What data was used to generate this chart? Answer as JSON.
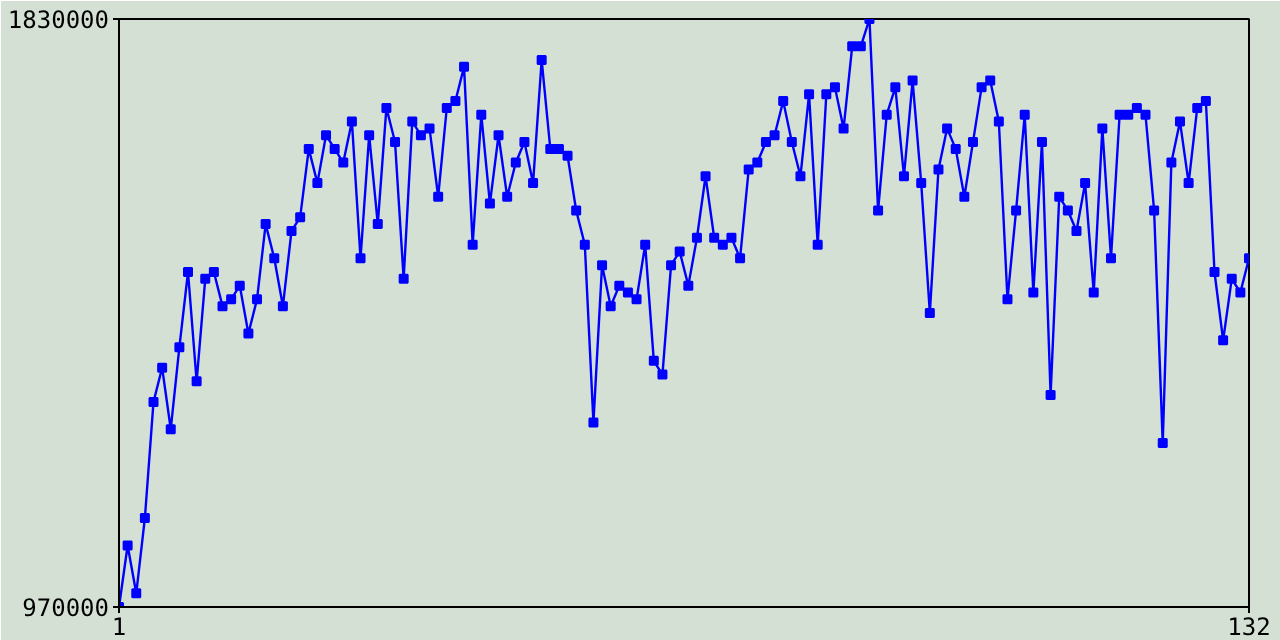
{
  "chart_data": {
    "type": "line",
    "x": [
      1,
      2,
      3,
      4,
      5,
      6,
      7,
      8,
      9,
      10,
      11,
      12,
      13,
      14,
      15,
      16,
      17,
      18,
      19,
      20,
      21,
      22,
      23,
      24,
      25,
      26,
      27,
      28,
      29,
      30,
      31,
      32,
      33,
      34,
      35,
      36,
      37,
      38,
      39,
      40,
      41,
      42,
      43,
      44,
      45,
      46,
      47,
      48,
      49,
      50,
      51,
      52,
      53,
      54,
      55,
      56,
      57,
      58,
      59,
      60,
      61,
      62,
      63,
      64,
      65,
      66,
      67,
      68,
      69,
      70,
      71,
      72,
      73,
      74,
      75,
      76,
      77,
      78,
      79,
      80,
      81,
      82,
      83,
      84,
      85,
      86,
      87,
      88,
      89,
      90,
      91,
      92,
      93,
      94,
      95,
      96,
      97,
      98,
      99,
      100,
      101,
      102,
      103,
      104,
      105,
      106,
      107,
      108,
      109,
      110,
      111,
      112,
      113,
      114,
      115,
      116,
      117,
      118,
      119,
      120,
      121,
      122,
      123,
      124,
      125,
      126,
      127,
      128,
      129,
      130,
      131,
      132
    ],
    "series": [
      {
        "color": "#0000ff",
        "values": [
          970000,
          1060000,
          990000,
          1100000,
          1270000,
          1320000,
          1230000,
          1350000,
          1460000,
          1300000,
          1450000,
          1460000,
          1410000,
          1420000,
          1440000,
          1370000,
          1420000,
          1530000,
          1480000,
          1410000,
          1520000,
          1540000,
          1640000,
          1590000,
          1660000,
          1640000,
          1620000,
          1680000,
          1480000,
          1660000,
          1530000,
          1700000,
          1650000,
          1450000,
          1680000,
          1660000,
          1670000,
          1570000,
          1700000,
          1710000,
          1760000,
          1500000,
          1690000,
          1560000,
          1660000,
          1570000,
          1620000,
          1650000,
          1590000,
          1770000,
          1640000,
          1640000,
          1630000,
          1550000,
          1500000,
          1240000,
          1470000,
          1410000,
          1440000,
          1430000,
          1420000,
          1500000,
          1330000,
          1310000,
          1470000,
          1490000,
          1440000,
          1510000,
          1600000,
          1510000,
          1500000,
          1510000,
          1480000,
          1610000,
          1620000,
          1650000,
          1660000,
          1710000,
          1650000,
          1600000,
          1720000,
          1500000,
          1720000,
          1730000,
          1670000,
          1790000,
          1790000,
          1830000,
          1550000,
          1690000,
          1730000,
          1600000,
          1740000,
          1590000,
          1400000,
          1610000,
          1670000,
          1640000,
          1570000,
          1650000,
          1730000,
          1740000,
          1680000,
          1420000,
          1550000,
          1690000,
          1430000,
          1650000,
          1280000,
          1570000,
          1550000,
          1520000,
          1590000,
          1430000,
          1670000,
          1480000,
          1690000,
          1690000,
          1700000,
          1690000,
          1550000,
          1210000,
          1620000,
          1680000,
          1590000,
          1700000,
          1710000,
          1460000,
          1360000,
          1450000,
          1430000,
          1480000
        ]
      }
    ],
    "xlim": [
      1,
      132
    ],
    "xticks": [
      1,
      132
    ],
    "ylim": [
      970000,
      1830000
    ],
    "yticks": [
      970000,
      1830000
    ],
    "marker": "square",
    "line_style": "solid"
  }
}
